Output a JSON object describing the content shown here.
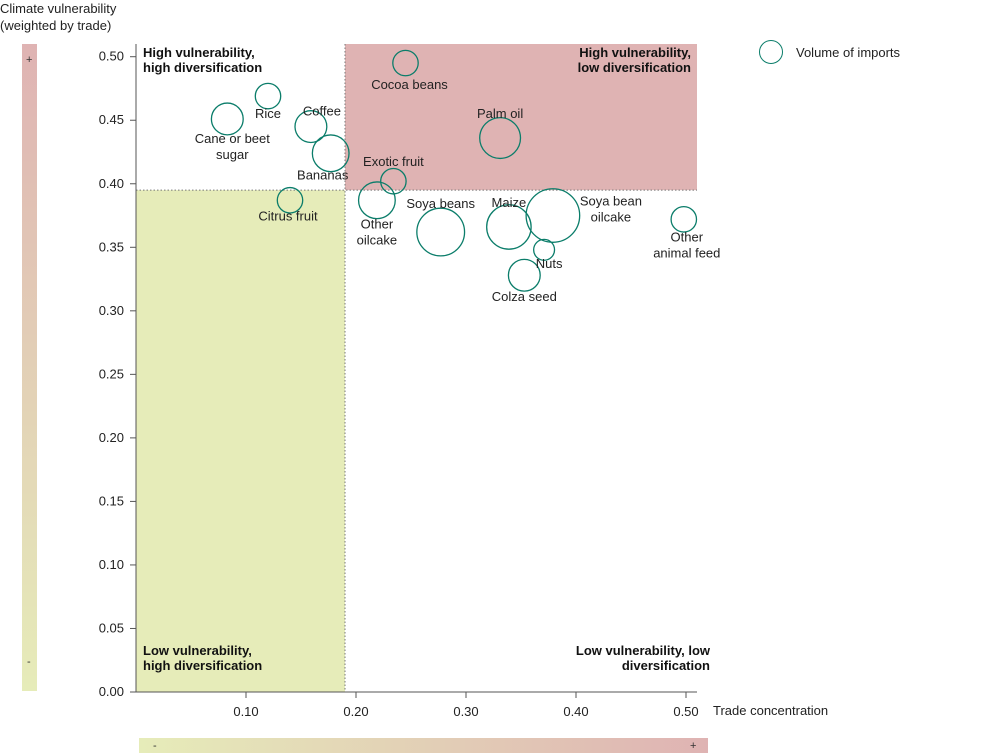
{
  "chart_data": {
    "type": "bubble",
    "ylabel": "Climate vulnerability (weighted by trade)",
    "xlabel": "Trade concentration",
    "xlim": [
      0.0,
      0.51
    ],
    "ylim": [
      0.0,
      0.51
    ],
    "xticks": [
      "0.10",
      "0.20",
      "0.30",
      "0.40",
      "0.50"
    ],
    "yticks": [
      "0.00",
      "0.05",
      "0.10",
      "0.15",
      "0.20",
      "0.25",
      "0.30",
      "0.35",
      "0.40",
      "0.45",
      "0.50"
    ],
    "threshold_x": 0.19,
    "threshold_y": 0.395,
    "legend": {
      "label": "Volume of imports"
    },
    "quadrants": {
      "top_left": "High vulnerability, high diversification",
      "top_right": "High vulnerability, low diversification",
      "bottom_left": "Low vulnerability, high diversification",
      "bottom_right": "Low vulnerability, low diversification"
    },
    "gradient_marks": {
      "low": "-",
      "high": "+"
    },
    "colors": {
      "bubble": "#0b7d6a",
      "high_low_fill": "#dfb3b3",
      "low_high_fill": "#e6ecb9",
      "gradient_low": "#e6ecb9",
      "gradient_high": "#dfb3b3"
    },
    "points": [
      {
        "name": "Cocoa beans",
        "x": 0.245,
        "y": 0.495,
        "size": 1
      },
      {
        "name": "Rice",
        "x": 0.12,
        "y": 0.469,
        "size": 1
      },
      {
        "name": "Cane or beet sugar",
        "x": 0.083,
        "y": 0.451,
        "size": 2
      },
      {
        "name": "Coffee",
        "x": 0.159,
        "y": 0.445,
        "size": 2
      },
      {
        "name": "Palm oil",
        "x": 0.331,
        "y": 0.436,
        "size": 4
      },
      {
        "name": "Bananas",
        "x": 0.177,
        "y": 0.424,
        "size": 3
      },
      {
        "name": "Exotic fruit",
        "x": 0.234,
        "y": 0.402,
        "size": 1
      },
      {
        "name": "Citrus fruit",
        "x": 0.14,
        "y": 0.387,
        "size": 1
      },
      {
        "name": "Other oilcake",
        "x": 0.219,
        "y": 0.387,
        "size": 3
      },
      {
        "name": "Soya beans",
        "x": 0.277,
        "y": 0.362,
        "size": 6
      },
      {
        "name": "Maize",
        "x": 0.339,
        "y": 0.366,
        "size": 5
      },
      {
        "name": "Soya bean oilcake",
        "x": 0.379,
        "y": 0.375,
        "size": 8
      },
      {
        "name": "Other animal feed",
        "x": 0.498,
        "y": 0.372,
        "size": 1
      },
      {
        "name": "Nuts",
        "x": 0.371,
        "y": 0.348,
        "size": 0.5
      },
      {
        "name": "Colza seed",
        "x": 0.353,
        "y": 0.328,
        "size": 2
      }
    ]
  }
}
